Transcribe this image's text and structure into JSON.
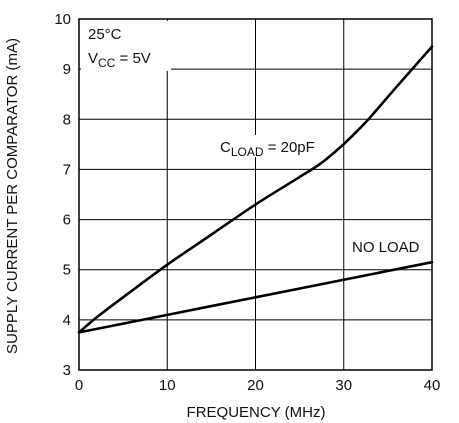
{
  "chart_data": {
    "type": "line",
    "title": "",
    "xlabel": "FREQUENCY (MHz)",
    "ylabel": "SUPPLY CURRENT PER COMPARATOR (mA)",
    "xlim": [
      0,
      40
    ],
    "ylim": [
      3,
      10
    ],
    "x_ticks": [
      0,
      10,
      20,
      30,
      40
    ],
    "y_ticks": [
      3,
      4,
      5,
      6,
      7,
      8,
      9,
      10
    ],
    "grid": true,
    "legend": "none",
    "series": [
      {
        "name": "NO LOAD",
        "color": "#000000",
        "x": [
          0,
          10,
          20,
          30,
          40
        ],
        "y": [
          3.75,
          4.1,
          4.45,
          4.8,
          5.15
        ]
      },
      {
        "color": "#000000",
        "x": [
          0,
          2,
          5,
          10,
          15,
          20,
          25,
          28,
          32,
          36,
          40
        ],
        "y": [
          3.75,
          4.05,
          4.45,
          5.1,
          5.7,
          6.3,
          6.85,
          7.2,
          7.85,
          8.65,
          9.45
        ]
      }
    ],
    "annotations": {
      "conditions_temp": "25°C",
      "conditions_vcc_main": "V",
      "conditions_vcc_sub": "CC",
      "conditions_vcc_value": " = 5V",
      "cload_main": "C",
      "cload_sub": "LOAD",
      "cload_value": " = 20pF",
      "noload": "NO LOAD"
    }
  }
}
